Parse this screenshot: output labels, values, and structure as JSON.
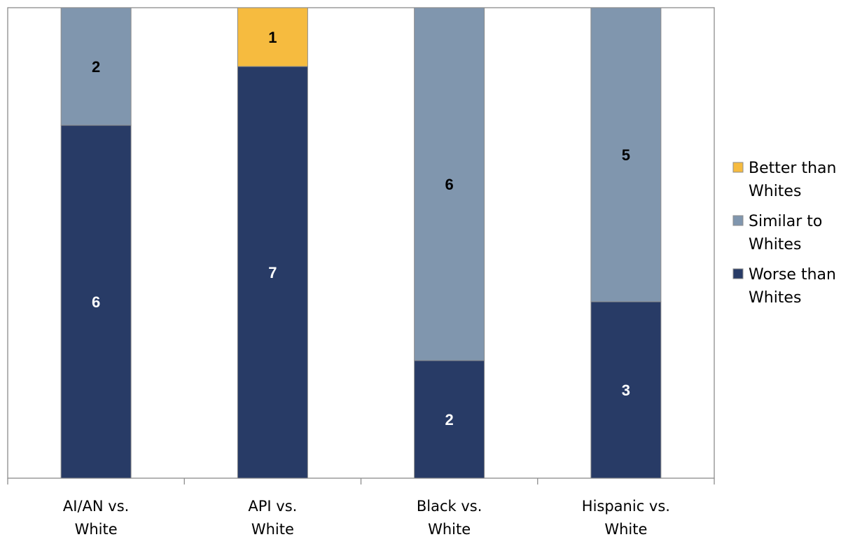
{
  "chart_data": {
    "type": "bar",
    "stacked": true,
    "categories": [
      [
        "AI/AN vs.",
        "White"
      ],
      [
        "API vs.",
        "White"
      ],
      [
        "Black vs.",
        "White"
      ],
      [
        "Hispanic vs.",
        "White"
      ]
    ],
    "series": [
      {
        "name": "Worse than Whites",
        "legend_lines": [
          "Worse than",
          "Whites"
        ],
        "color": "#283b66",
        "label_color": "#ffffff",
        "values": [
          6,
          7,
          2,
          3
        ]
      },
      {
        "name": "Similar to Whites",
        "legend_lines": [
          "Similar to",
          "Whites"
        ],
        "color": "#8096ae",
        "label_color": "#000000",
        "values": [
          2,
          0,
          6,
          5
        ]
      },
      {
        "name": "Better than Whites",
        "legend_lines": [
          "Better than",
          "Whites"
        ],
        "color": "#f6bb3f",
        "label_color": "#000000",
        "values": [
          0,
          1,
          0,
          0
        ]
      }
    ],
    "ylim": [
      0,
      8
    ],
    "grid": false,
    "legend_position": "right",
    "legend_order": [
      2,
      1,
      0
    ],
    "title": "",
    "xlabel": "",
    "ylabel": ""
  }
}
